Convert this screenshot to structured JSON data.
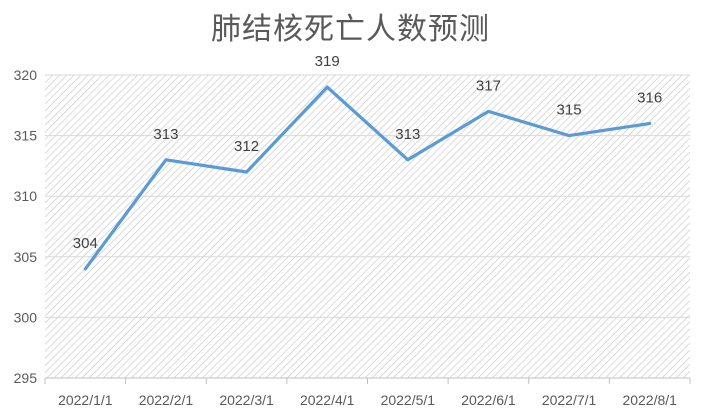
{
  "chart_data": {
    "type": "line",
    "title": "肺结核死亡人数预测",
    "xlabel": "",
    "ylabel": "",
    "categories": [
      "2022/1/1",
      "2022/2/1",
      "2022/3/1",
      "2022/4/1",
      "2022/5/1",
      "2022/6/1",
      "2022/7/1",
      "2022/8/1"
    ],
    "series": [
      {
        "values": [
          304,
          313,
          312,
          319,
          313,
          317,
          315,
          316
        ]
      }
    ],
    "ylim": [
      295,
      320
    ],
    "yticks": [
      295,
      300,
      305,
      310,
      315,
      320
    ],
    "grid": true,
    "data_labels": true,
    "legend": "none",
    "colors": {
      "line": "#5b9bd5",
      "grid": "#d9d9d9",
      "hatch": "#c8c8c8",
      "axis": "#bfbfbf"
    }
  }
}
